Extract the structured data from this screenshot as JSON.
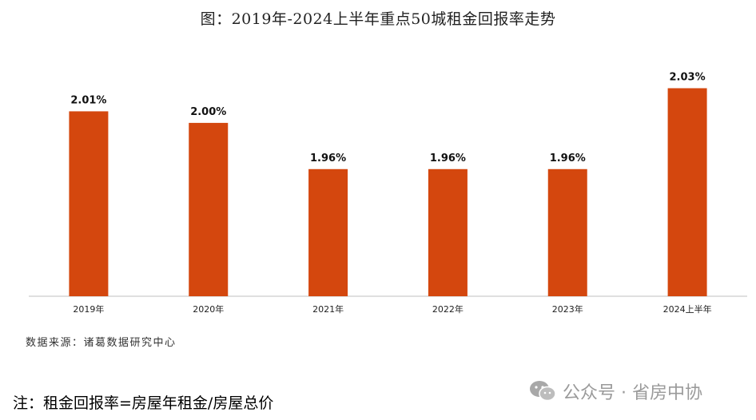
{
  "title": "图：2019年-2024上半年重点50城租金回报率走势",
  "chart_data": {
    "type": "bar",
    "categories": [
      "2019年",
      "2020年",
      "2021年",
      "2022年",
      "2023年",
      "2024上半年"
    ],
    "values": [
      2.01,
      2.0,
      1.96,
      1.96,
      1.96,
      2.03
    ],
    "value_labels": [
      "2.01%",
      "2.00%",
      "1.96%",
      "1.96%",
      "1.96%",
      "2.03%"
    ],
    "xlabel": "",
    "ylabel": "",
    "ylim": [
      1.85,
      2.04
    ],
    "grid": false,
    "legend": "none",
    "bar_color": "#d4470e"
  },
  "source_note": "数据来源：诸葛数据研究中心",
  "footnote": "注：租金回报率=房屋年租金/房屋总价",
  "watermark": {
    "text": "公众号 · 省房中协",
    "icon": "wechat-icon"
  }
}
